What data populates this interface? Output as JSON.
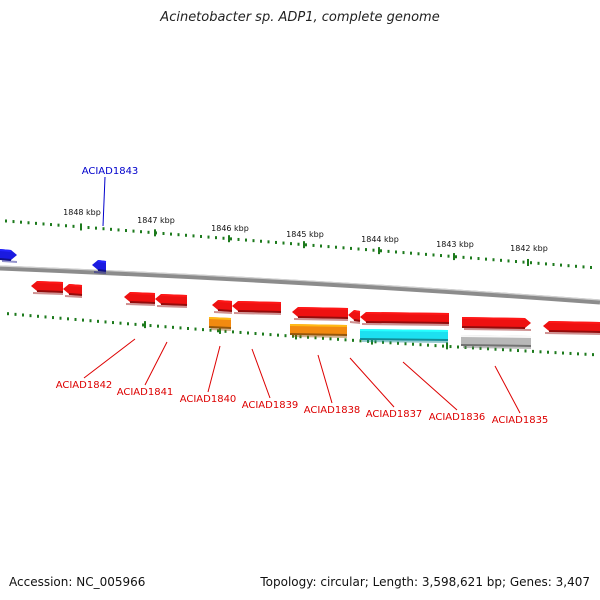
{
  "title": "Acinetobacter sp. ADP1, complete genome",
  "footer": {
    "accession": "Accession: NC_005966",
    "summary": "Topology: circular; Length: 3,598,621 bp; Genes: 3,407"
  },
  "colors": {
    "backbone": "#8c8c8c",
    "tick": "#1c7a1c",
    "red_gene": "#ee1111",
    "blue_gene": "#1a1ae0",
    "orange_gene": "#f28a10",
    "cyan_gene": "#1de0f0",
    "gray_gene": "#b8b8b8",
    "red_label": "#dd0000",
    "blue_label": "#0000cc"
  },
  "kbp_labels": [
    "1848 kbp",
    "1847 kbp",
    "1846 kbp",
    "1845 kbp",
    "1844 kbp",
    "1843 kbp",
    "1842 kbp"
  ],
  "gene_labels": {
    "top": [
      "ACIAD1843"
    ],
    "bottom": [
      "ACIAD1842",
      "ACIAD1841",
      "ACIAD1840",
      "ACIAD1839",
      "ACIAD1838",
      "ACIAD1837",
      "ACIAD1836",
      "ACIAD1835"
    ]
  }
}
